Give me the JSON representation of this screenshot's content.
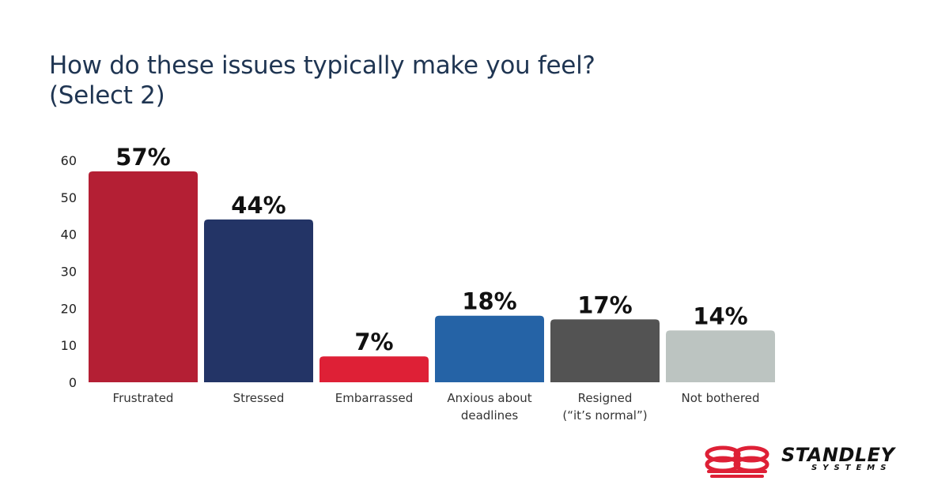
{
  "title": {
    "line1": "How do these issues typically make you feel?",
    "line2": "(Select 2)"
  },
  "chart_data": {
    "type": "bar",
    "title": "How do these issues typically make you feel? (Select 2)",
    "categories": [
      [
        "Frustrated"
      ],
      [
        "Stressed"
      ],
      [
        "Embarrassed"
      ],
      [
        "Anxious about",
        "deadlines"
      ],
      [
        "Resigned",
        "(“it’s normal”)"
      ],
      [
        "Not bothered"
      ]
    ],
    "values": [
      57,
      44,
      7,
      18,
      17,
      14
    ],
    "value_labels": [
      "57%",
      "44%",
      "7%",
      "18%",
      "17%",
      "14%"
    ],
    "colors": [
      "#b41f34",
      "#233466",
      "#de2036",
      "#2563a6",
      "#535353",
      "#bcc4c1"
    ],
    "yticks": [
      0,
      10,
      20,
      30,
      40,
      50,
      60
    ],
    "ylim": [
      0,
      60
    ],
    "xlabel": "",
    "ylabel": "",
    "grid": false,
    "legend": "none"
  },
  "logo": {
    "name": "STANDLEY",
    "sub": "SYSTEMS",
    "accent": "#de2036"
  }
}
